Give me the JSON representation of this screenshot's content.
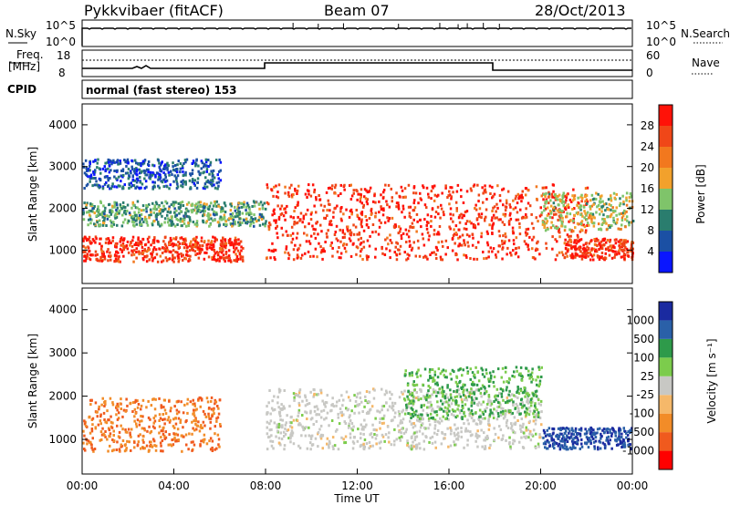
{
  "header": {
    "station": "Pykkvibaer (fitACF)",
    "beam": "Beam 07",
    "date": "28/Oct/2013"
  },
  "strips": {
    "nsky_label": "N.Sky",
    "nsky_ticks": [
      "10^5",
      "10^0"
    ],
    "nsearch_label": "N.Search",
    "nsearch_ticks": [
      "10^5",
      "10^0"
    ],
    "freq_label_1": "Freq.",
    "freq_label_2": "[MHz]",
    "freq_ticks": [
      "18",
      "8"
    ],
    "nave_label": "Nave",
    "nave_ticks": [
      "60",
      "0"
    ],
    "cpid_label": "CPID",
    "cpid_text": "normal (fast stereo) 153"
  },
  "colors": {
    "power_scale": [
      "#0a16ff",
      "#1b50a4",
      "#2a7d6e",
      "#7fc46a",
      "#f2a12c",
      "#f2781e",
      "#f04718",
      "#ff1208"
    ],
    "velocity_scale": [
      "#ff0000",
      "#f05a1e",
      "#f28c28",
      "#f5b86a",
      "#c8c8c4",
      "#7ccc4c",
      "#2e9a4a",
      "#2a60a8",
      "#1a2aa0"
    ],
    "ground_scatter": "#bcbcb8"
  },
  "chart_data": [
    {
      "type": "heatmap",
      "name": "power",
      "ylabel": "Slant Range [km]",
      "yticks": [
        "1000",
        "2000",
        "3000",
        "4000"
      ],
      "ylim": [
        200,
        4500
      ],
      "colorbar_label": "Power [dB]",
      "colorbar_ticks": [
        "4",
        "8",
        "12",
        "16",
        "20",
        "24",
        "28"
      ],
      "colorbar_range": [
        0,
        32
      ],
      "features": [
        {
          "x": [
            "00:00",
            "07:00"
          ],
          "slant_range_km": [
            750,
            1350
          ],
          "power_db": 28
        },
        {
          "x": [
            "00:00",
            "08:00"
          ],
          "slant_range_km": [
            1600,
            2200
          ],
          "power_db": 12
        },
        {
          "x": [
            "00:00",
            "06:00"
          ],
          "slant_range_km": [
            2500,
            3200
          ],
          "power_db": 6
        },
        {
          "x": [
            "08:00",
            "22:00"
          ],
          "slant_range_km": [
            800,
            2600
          ],
          "power_db": 28
        },
        {
          "x": [
            "21:00",
            "24:00"
          ],
          "slant_range_km": [
            800,
            1300
          ],
          "power_db": 28
        },
        {
          "x": [
            "20:00",
            "24:00"
          ],
          "slant_range_km": [
            1500,
            2400
          ],
          "power_db": 16
        }
      ]
    },
    {
      "type": "heatmap",
      "name": "velocity",
      "ylabel": "Slant Range [km]",
      "yticks": [
        "1000",
        "2000",
        "3000",
        "4000"
      ],
      "ylim": [
        200,
        4500
      ],
      "colorbar_label": "Velocity [m s⁻¹]",
      "colorbar_ticks": [
        "1000",
        "500",
        "100",
        "25",
        "-25",
        "-100",
        "-500",
        "-1000"
      ],
      "features": [
        {
          "x": [
            "00:00",
            "06:00"
          ],
          "slant_range_km": [
            750,
            2000
          ],
          "velocity": -500
        },
        {
          "x": [
            "08:00",
            "20:00"
          ],
          "slant_range_km": [
            800,
            2200
          ],
          "velocity": 0
        },
        {
          "x": [
            "20:00",
            "24:00"
          ],
          "slant_range_km": [
            800,
            1300
          ],
          "velocity": 1000
        },
        {
          "x": [
            "14:00",
            "20:00"
          ],
          "slant_range_km": [
            1500,
            2700
          ],
          "velocity": 100
        }
      ]
    }
  ],
  "xaxis": {
    "label": "Time UT",
    "ticks": [
      "00:00",
      "04:00",
      "08:00",
      "12:00",
      "16:00",
      "20:00",
      "00:00"
    ]
  }
}
